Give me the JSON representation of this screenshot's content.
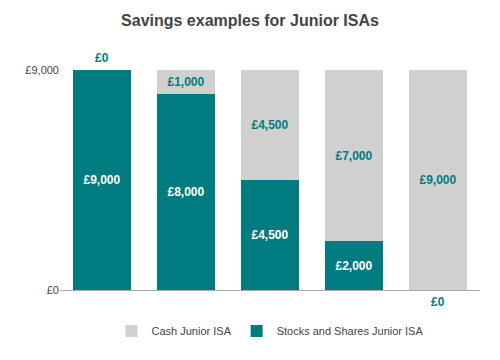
{
  "chart_data": {
    "type": "bar",
    "title": "Savings examples for Junior ISAs",
    "categories": [
      null,
      null,
      null,
      null,
      null
    ],
    "series": [
      {
        "name": "Stocks and Shares Junior ISA",
        "color": "#007B7F",
        "values": [
          9000,
          8000,
          4500,
          2000,
          0
        ],
        "value_labels": [
          "£9,000",
          "£8,000",
          "£4,500",
          "£2,000",
          "£0"
        ]
      },
      {
        "name": "Cash Junior ISA",
        "color": "#D0D0D0",
        "values": [
          0,
          1000,
          4500,
          7000,
          9000
        ],
        "value_labels": [
          "£0",
          "£1,000",
          "£4,500",
          "£7,000",
          "£9,000"
        ]
      }
    ],
    "stacked": true,
    "ylim": [
      0,
      9000
    ],
    "yticks": [
      {
        "value": 0,
        "label": "£0"
      },
      {
        "value": 9000,
        "label": "£9,000"
      }
    ],
    "grid": false,
    "legend": "bottom",
    "data_labels": true,
    "tick_labels": "y"
  }
}
